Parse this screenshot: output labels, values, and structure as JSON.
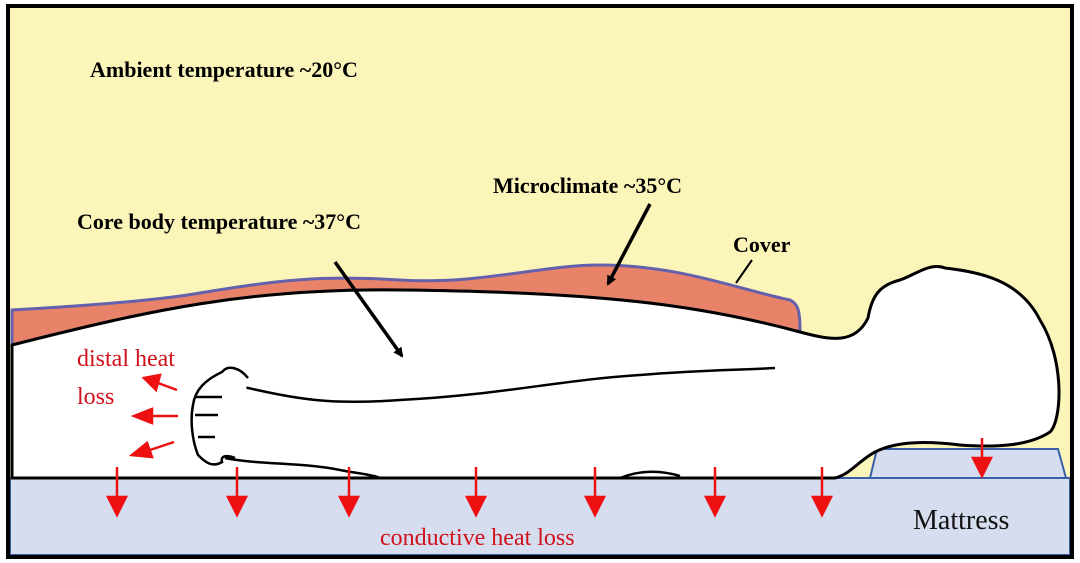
{
  "labels": {
    "ambient": "Ambient temperature ~20°C",
    "microclimate": "Microclimate ~35°C",
    "core": "Core body temperature ~37°C",
    "cover": "Cover",
    "distal_line1": "distal heat",
    "distal_line2": "loss",
    "conductive": "conductive heat loss",
    "mattress": "Mattress"
  },
  "colors": {
    "ambient": "#fbf5b9",
    "microclimate_layer": "#e8836a",
    "cover": "#6460ac",
    "mattress": "#d6ddef",
    "heat_arrows": "#ee1111",
    "text_red": "#d0101a"
  }
}
